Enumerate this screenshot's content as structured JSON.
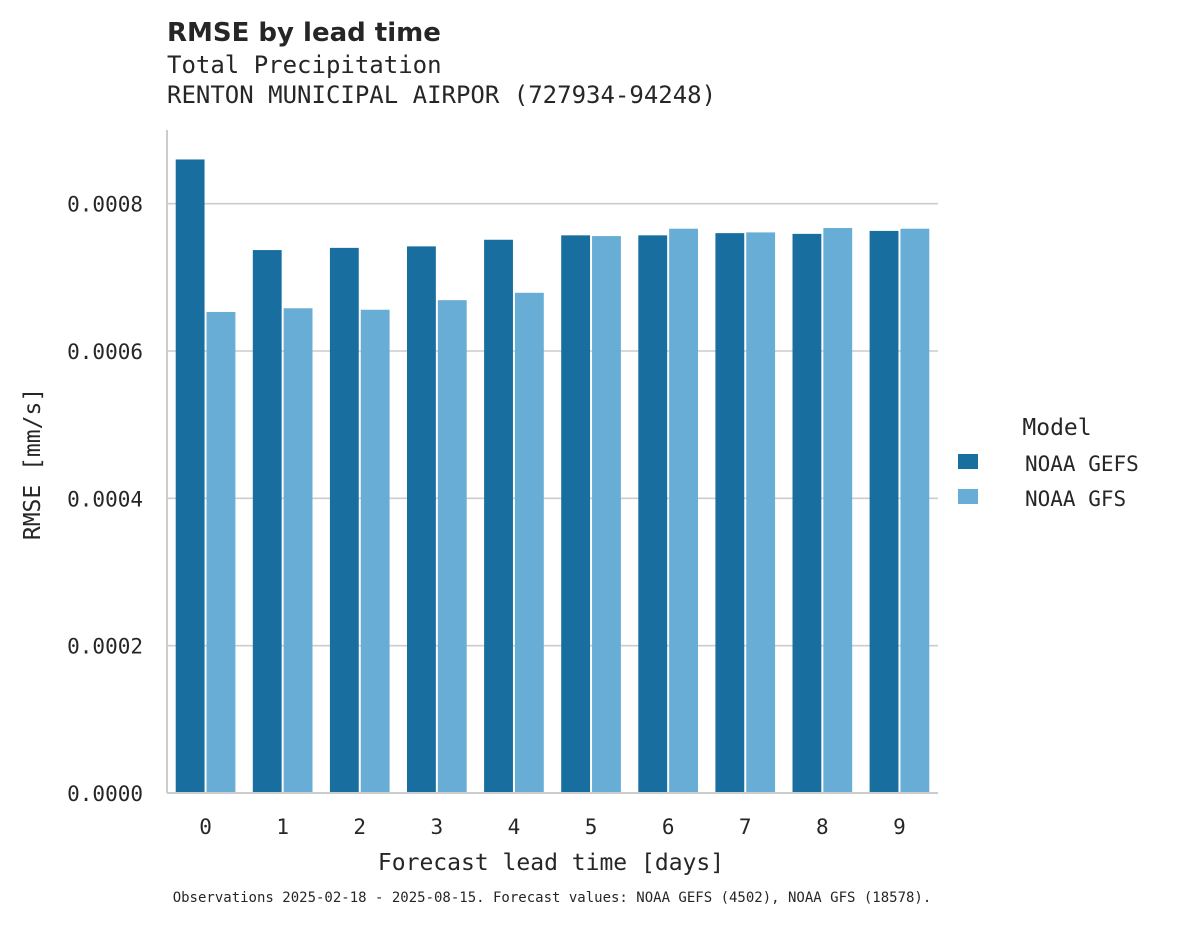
{
  "chart_data": {
    "type": "bar",
    "title": "RMSE by lead time",
    "subtitle_lines": [
      "Total Precipitation",
      "RENTON MUNICIPAL AIRPOR (727934-94248)"
    ],
    "xlabel": "Forecast lead time [days]",
    "ylabel": "RMSE [mm/s]",
    "categories": [
      "0",
      "1",
      "2",
      "3",
      "4",
      "5",
      "6",
      "7",
      "8",
      "9"
    ],
    "series": [
      {
        "name": "NOAA GEFS",
        "color": "#186e9e",
        "values": [
          0.00086,
          0.000737,
          0.00074,
          0.000742,
          0.000751,
          0.000757,
          0.000757,
          0.00076,
          0.000759,
          0.000763
        ]
      },
      {
        "name": "NOAA GFS",
        "color": "#67add6",
        "values": [
          0.000653,
          0.000658,
          0.000656,
          0.000669,
          0.000679,
          0.000756,
          0.000766,
          0.000761,
          0.000767,
          0.000766
        ]
      }
    ],
    "ylim": [
      0,
      0.0009
    ],
    "yticks": [
      0,
      0.0002,
      0.0004,
      0.0006,
      0.0008
    ],
    "ytick_labels": [
      "0.0000",
      "0.0002",
      "0.0004",
      "0.0006",
      "0.0008"
    ],
    "grid": "y",
    "legend": {
      "title": "Model",
      "position": "right"
    },
    "footnote": "Observations 2025-02-18 - 2025-08-15. Forecast values: NOAA GEFS (4502), NOAA GFS (18578)."
  }
}
